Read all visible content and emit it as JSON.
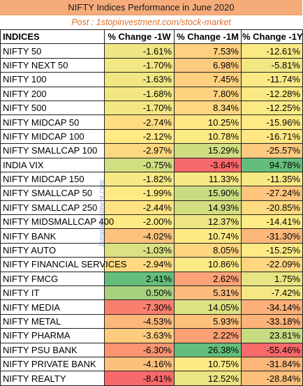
{
  "title": "NIFTY Indices Performance in June 2020",
  "subtitle": "Post : 1stopinvestment.com/stock-market",
  "watermark": "1stopinvestment.com",
  "chart_data": {
    "type": "table",
    "columns": [
      "INDICES",
      "% Change -1W",
      "% Change -1M",
      "% Change -1Y"
    ],
    "rows": [
      {
        "name": "NIFTY 50",
        "w1": "-1.61%",
        "m1": "7.53%",
        "y1": "-12.61%"
      },
      {
        "name": "NIFTY NEXT 50",
        "w1": "-1.70%",
        "m1": "6.98%",
        "y1": "-5.81%"
      },
      {
        "name": "NIFTY 100",
        "w1": "-1.63%",
        "m1": "7.45%",
        "y1": "-11.74%"
      },
      {
        "name": "NIFTY 200",
        "w1": "-1.68%",
        "m1": "7.80%",
        "y1": "-12.28%"
      },
      {
        "name": "NIFTY 500",
        "w1": "-1.70%",
        "m1": "8.34%",
        "y1": "-12.25%"
      },
      {
        "name": "NIFTY MIDCAP 50",
        "w1": "-2.74%",
        "m1": "10.25%",
        "y1": "-15.96%"
      },
      {
        "name": "NIFTY MIDCAP 100",
        "w1": "-2.12%",
        "m1": "10.78%",
        "y1": "-16.71%"
      },
      {
        "name": "NIFTY SMALLCAP 100",
        "w1": "-2.97%",
        "m1": "15.29%",
        "y1": "-25.57%"
      },
      {
        "name": "INDIA VIX",
        "w1": "-0.75%",
        "m1": "-3.64%",
        "y1": "94.78%"
      },
      {
        "name": "NIFTY MIDCAP 150",
        "w1": "-1.82%",
        "m1": "11.33%",
        "y1": "-11.35%"
      },
      {
        "name": "NIFTY SMALLCAP 50",
        "w1": "-1.99%",
        "m1": "15.90%",
        "y1": "-27.24%"
      },
      {
        "name": "NIFTY SMALLCAP 250",
        "w1": "-2.44%",
        "m1": "14.93%",
        "y1": "-20.85%"
      },
      {
        "name": "NIFTY MIDSMALLCAP 400",
        "w1": "-2.00%",
        "m1": "12.37%",
        "y1": "-14.41%"
      },
      {
        "name": "NIFTY BANK",
        "w1": "-4.02%",
        "m1": "10.74%",
        "y1": "-31.30%"
      },
      {
        "name": "NIFTY AUTO",
        "w1": "-1.03%",
        "m1": "8.05%",
        "y1": "-15.25%"
      },
      {
        "name": "NIFTY FINANCIAL SERVICES",
        "w1": "-2.94%",
        "m1": "10.86%",
        "y1": "-22.09%"
      },
      {
        "name": "NIFTY FMCG",
        "w1": "2.41%",
        "m1": "2.62%",
        "y1": "1.75%"
      },
      {
        "name": "NIFTY IT",
        "w1": "0.50%",
        "m1": "5.31%",
        "y1": "-7.42%"
      },
      {
        "name": "NIFTY MEDIA",
        "w1": "-7.30%",
        "m1": "14.05%",
        "y1": "-34.14%"
      },
      {
        "name": "NIFTY METAL",
        "w1": "-4.53%",
        "m1": "5.93%",
        "y1": "-33.18%"
      },
      {
        "name": "NIFTY PHARMA",
        "w1": "-3.63%",
        "m1": "2.22%",
        "y1": "23.81%"
      },
      {
        "name": "NIFTY PSU BANK",
        "w1": "-6.30%",
        "m1": "26.38%",
        "y1": "-55.46%"
      },
      {
        "name": "NIFTY PRIVATE BANK",
        "w1": "-4.16%",
        "m1": "10.75%",
        "y1": "-31.84%"
      },
      {
        "name": "NIFTY REALTY",
        "w1": "-8.41%",
        "m1": "12.52%",
        "y1": "-28.84%"
      }
    ],
    "colors": {
      "title_bg": "#f5ac7a",
      "subtitle_text": "#e0702a",
      "scale_low": "#f8696b",
      "scale_mid": "#ffeb84",
      "scale_high": "#63be7b"
    }
  }
}
